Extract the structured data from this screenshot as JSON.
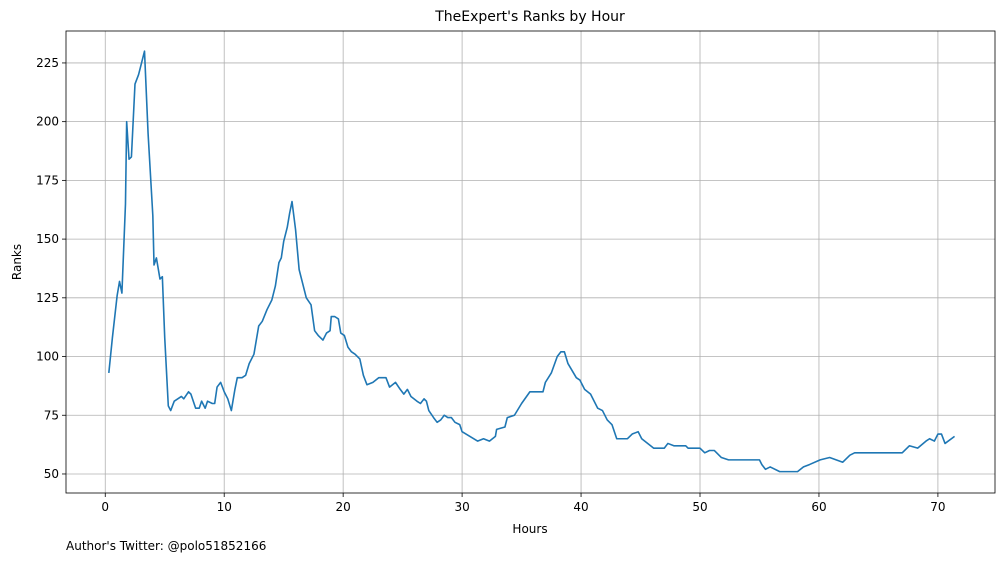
{
  "chart_data": {
    "type": "line",
    "title": "TheExpert's Ranks by Hour",
    "xlabel": "Hours",
    "ylabel": "Ranks",
    "footnote": "Author's Twitter: @polo51852166",
    "x": [
      0.3,
      0.6,
      1.0,
      1.2,
      1.4,
      1.7,
      1.8,
      2.0,
      2.2,
      2.5,
      2.8,
      3.0,
      3.3,
      3.6,
      4.0,
      4.1,
      4.3,
      4.6,
      4.8,
      5.0,
      5.3,
      5.5,
      5.8,
      6.1,
      6.4,
      6.6,
      7.0,
      7.2,
      7.6,
      7.9,
      8.1,
      8.4,
      8.6,
      9.0,
      9.2,
      9.4,
      9.7,
      10.0,
      10.3,
      10.6,
      10.9,
      11.1,
      11.5,
      11.8,
      12.1,
      12.5,
      12.9,
      13.2,
      13.6,
      14.0,
      14.3,
      14.6,
      14.8,
      15.0,
      15.3,
      15.5,
      15.7,
      16.0,
      16.3,
      16.6,
      16.9,
      17.3,
      17.6,
      17.9,
      18.3,
      18.6,
      18.9,
      19.0,
      19.3,
      19.6,
      19.8,
      20.1,
      20.4,
      20.7,
      21.0,
      21.4,
      21.7,
      22.0,
      22.5,
      23.0,
      23.6,
      23.9,
      24.4,
      24.8,
      25.1,
      25.4,
      25.7,
      26.2,
      26.5,
      26.8,
      27.0,
      27.2,
      27.6,
      27.9,
      28.2,
      28.5,
      28.8,
      29.1,
      29.4,
      29.8,
      30.0,
      31.3,
      31.8,
      32.3,
      32.8,
      32.9,
      33.6,
      33.8,
      34.4,
      35.0,
      35.7,
      36.8,
      37.0,
      37.5,
      38.0,
      38.3,
      38.6,
      38.9,
      39.6,
      39.9,
      40.3,
      40.8,
      41.4,
      41.8,
      42.2,
      42.6,
      43.0,
      43.9,
      44.3,
      44.8,
      45.1,
      46.1,
      47.0,
      47.3,
      47.8,
      48.8,
      49.0,
      50.0,
      50.4,
      50.8,
      51.2,
      51.8,
      52.4,
      55.0,
      55.2,
      55.5,
      55.9,
      56.7,
      58.2,
      58.7,
      59.2,
      60.1,
      60.9,
      62.0,
      62.6,
      63.0,
      67.0,
      67.6,
      68.3,
      69.0,
      69.3,
      69.7,
      70.0,
      70.3,
      70.6,
      71.4
    ],
    "series": [
      {
        "name": "Ranks",
        "color": "#1f77b4",
        "values": [
          93,
          108,
          126,
          132,
          127,
          165,
          200,
          184,
          185,
          216,
          220,
          224,
          230,
          195,
          160,
          139,
          142,
          133,
          134,
          108,
          79,
          77,
          81,
          82,
          83,
          82,
          85,
          84,
          78,
          78,
          81,
          78,
          81,
          80,
          80,
          87,
          89,
          85,
          82,
          77,
          86,
          91,
          91,
          92,
          97,
          101,
          113,
          115,
          120,
          124,
          130,
          140,
          142,
          149,
          155,
          161,
          166,
          154,
          137,
          131,
          125,
          122,
          111,
          109,
          107,
          110,
          111,
          117,
          117,
          116,
          110,
          109,
          104,
          102,
          101,
          99,
          92,
          88,
          89,
          91,
          91,
          87,
          89,
          86,
          84,
          86,
          83,
          81,
          80,
          82,
          81,
          77,
          74,
          72,
          73,
          75,
          74,
          74,
          72,
          71,
          68,
          64,
          65,
          64,
          66,
          69,
          70,
          74,
          75,
          80,
          85,
          85,
          89,
          93,
          100,
          102,
          102,
          97,
          91,
          90,
          86,
          84,
          78,
          77,
          73,
          71,
          65,
          65,
          67,
          68,
          65,
          61,
          61,
          63,
          62,
          62,
          61,
          61,
          59,
          60,
          60,
          57,
          56,
          56,
          54,
          52,
          53,
          51,
          51,
          53,
          54,
          56,
          57,
          55,
          58,
          59,
          59,
          62,
          61,
          64,
          65,
          64,
          67,
          67,
          63,
          66
        ]
      }
    ],
    "xlim": [
      -3.3,
      74.8
    ],
    "ylim": [
      41.9,
      238.6
    ],
    "xticks": [
      0,
      10,
      20,
      30,
      40,
      50,
      60,
      70
    ],
    "yticks": [
      50,
      75,
      100,
      125,
      150,
      175,
      200,
      225
    ],
    "grid": true
  }
}
